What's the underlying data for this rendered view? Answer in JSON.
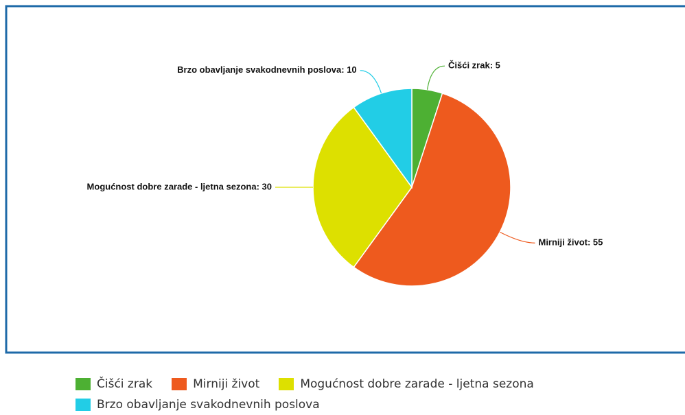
{
  "chart_data": {
    "type": "pie",
    "categories": [
      "Čišći zrak",
      "Mirniji život",
      "Mogućnost dobre zarade - ljetna sezona",
      "Brzo obavljanje svakodnevnih poslova"
    ],
    "values": [
      5,
      55,
      30,
      10
    ],
    "value_labels": [
      "Čišći zrak: 5",
      "Mirniji život: 55",
      "Mogućnost dobre zarade - ljetna sezona: 30",
      "Brzo obavljanje svakodnevnih poslova: 10"
    ],
    "colors": [
      "#4db033",
      "#ee5a1e",
      "#dde000",
      "#22cde6"
    ],
    "legend": "bottom"
  }
}
